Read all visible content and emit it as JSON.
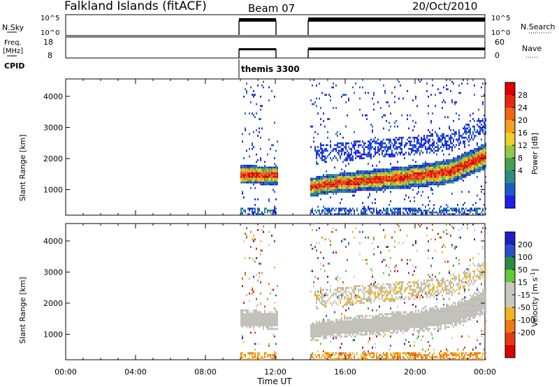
{
  "header": {
    "station": "Falkland Islands (fitACF)",
    "beam": "Beam 07",
    "date": "20/Oct/2010"
  },
  "strips": {
    "nsky": {
      "label": "N.Sky",
      "ticks": [
        "10^5",
        "10^0"
      ]
    },
    "nsearch": {
      "label": "N.Search",
      "ticks": [
        "10^5",
        "10^0"
      ]
    },
    "freq": {
      "label": "Freq.",
      "unit": "[MHz]",
      "ticks": [
        "18",
        "8"
      ]
    },
    "nave": {
      "label": "Nave",
      "ticks": [
        "60",
        "0"
      ]
    },
    "cpid": {
      "label": "CPID",
      "program": "themis 3300"
    }
  },
  "power_colorbar": {
    "label": "Power [dB]",
    "ticks": [
      "28",
      "24",
      "20",
      "16",
      "12",
      "8",
      "4"
    ],
    "colors": [
      "#1e1ee6",
      "#1e5ac8",
      "#2d8c82",
      "#46a050",
      "#96c846",
      "#f0d028",
      "#f5a01e",
      "#f06414",
      "#e62814",
      "#dc0000"
    ]
  },
  "velocity_colorbar": {
    "label": "Velocity [m s",
    "label_sup": "-1",
    "label_end": "]",
    "ticks": [
      "200",
      "100",
      "50",
      "15",
      "-15",
      "-50",
      "-100",
      "-200"
    ],
    "colors": [
      "#1e1ec8",
      "#2850c8",
      "#2d8c3c",
      "#64c83c",
      "#c8c8c0",
      "#c8c8c0",
      "#f0b41e",
      "#f07814",
      "#e63c14",
      "#dc0000"
    ]
  },
  "colors": {
    "ground_scatter": "#c0bfb8",
    "power_core": "#e63c14",
    "power_mid": "#f0a01e"
  },
  "chart_data": [
    {
      "type": "heatmap",
      "panel": "power",
      "ylabel": "Slant Range [km]",
      "y_ticks": [
        1000,
        2000,
        3000,
        4000
      ],
      "ylim": [
        180,
        4560
      ],
      "xlim_hours": [
        0,
        24
      ],
      "data_intervals_ut": [
        [
          10.0,
          12.1
        ],
        [
          14.0,
          24.0
        ]
      ],
      "band_core": [
        {
          "t": 10.0,
          "r": 1450
        },
        {
          "t": 12.0,
          "r": 1430
        },
        {
          "t": 14.0,
          "r": 1050
        },
        {
          "t": 15.0,
          "r": 1150
        },
        {
          "t": 16.0,
          "r": 1200
        },
        {
          "t": 18.0,
          "r": 1300
        },
        {
          "t": 20.0,
          "r": 1400
        },
        {
          "t": 22.0,
          "r": 1550
        },
        {
          "t": 23.0,
          "r": 1800
        },
        {
          "t": 24.0,
          "r": 2050
        }
      ]
    },
    {
      "type": "heatmap",
      "panel": "velocity",
      "ylabel": "Slant Range [km]",
      "y_ticks": [
        1000,
        2000,
        3000,
        4000
      ],
      "ylim": [
        180,
        4560
      ],
      "xlim_hours": [
        0,
        24
      ],
      "x_ticks": [
        "00:00",
        "04:00",
        "08:00",
        "12:00",
        "16:00",
        "20:00",
        "00:00"
      ],
      "xlabel": "Time UT"
    }
  ]
}
